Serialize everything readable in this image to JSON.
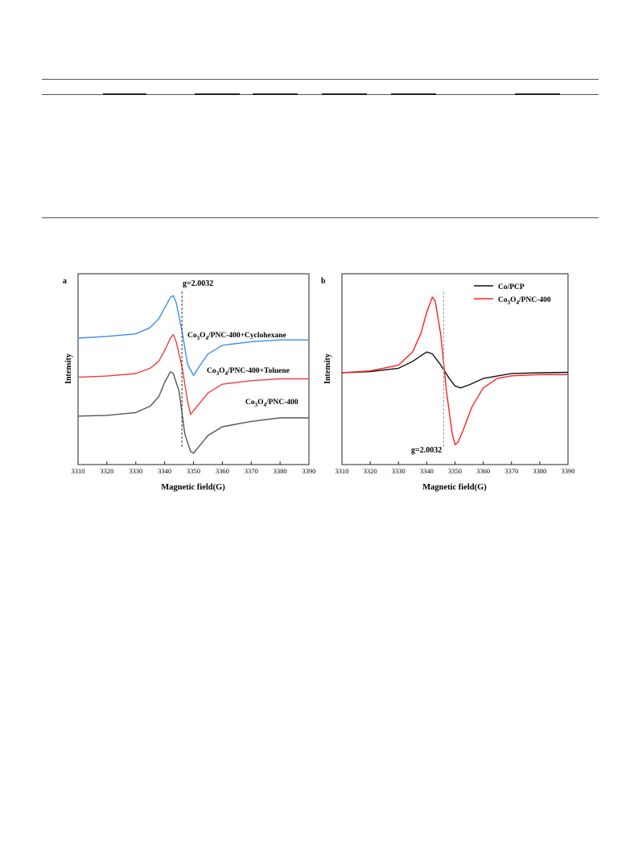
{
  "colors": {
    "blue": "#3c8ee6",
    "red": "#f03c3c",
    "gray": "#555555",
    "black": "#111111",
    "bright_red": "#ff2020"
  },
  "chart_data": [
    {
      "type": "line",
      "panel_label": "a",
      "xlabel": "Magnetic field(G)",
      "ylabel": "Intensity",
      "xlim": [
        3310,
        3390
      ],
      "xticks": [
        "3310",
        "3320",
        "3330",
        "3340",
        "3350",
        "3360",
        "3370",
        "3380",
        "3390"
      ],
      "annotation": "g=2.0032",
      "g_line_x": 3346,
      "series": [
        {
          "name": "Co3O4/PNC-400+Cyclohexane",
          "color": "#3c8ee6",
          "offset": 2.0,
          "x": [
            3310,
            3320,
            3330,
            3335,
            3338,
            3340,
            3342,
            3343,
            3344,
            3346,
            3348,
            3350,
            3352,
            3355,
            3360,
            3370,
            3380,
            3390
          ],
          "y": [
            0,
            0.05,
            0.12,
            0.3,
            0.55,
            0.85,
            1.15,
            1.2,
            1.0,
            0.2,
            -0.75,
            -1.05,
            -0.8,
            -0.45,
            -0.2,
            -0.1,
            -0.05,
            -0.05
          ]
        },
        {
          "name": "Co3O4/PNC-400+Toluene",
          "color": "#f03c3c",
          "offset": 0.9,
          "x": [
            3310,
            3320,
            3330,
            3335,
            3338,
            3340,
            3342,
            3343,
            3344,
            3346,
            3348,
            3349,
            3352,
            3355,
            3360,
            3370,
            3380,
            3390
          ],
          "y": [
            0,
            0.03,
            0.1,
            0.25,
            0.45,
            0.75,
            1.1,
            1.2,
            1.0,
            0.3,
            -0.7,
            -1.05,
            -0.75,
            -0.45,
            -0.2,
            -0.1,
            -0.05,
            -0.05
          ]
        },
        {
          "name": "Co3O4/PNC-400",
          "color": "#555555",
          "offset": -0.2,
          "x": [
            3310,
            3320,
            3330,
            3335,
            3338,
            3340,
            3342,
            3343,
            3345,
            3347,
            3349,
            3350,
            3352,
            3355,
            3360,
            3370,
            3380,
            3390
          ],
          "y": [
            0,
            0.02,
            0.1,
            0.28,
            0.55,
            0.95,
            1.25,
            1.2,
            0.7,
            -0.5,
            -1.0,
            -1.05,
            -0.85,
            -0.55,
            -0.3,
            -0.15,
            -0.05,
            -0.05
          ]
        }
      ]
    },
    {
      "type": "line",
      "panel_label": "b",
      "xlabel": "Magnetic field(G)",
      "ylabel": "Intensity",
      "xlim": [
        3310,
        3390
      ],
      "xticks": [
        "3310",
        "3320",
        "3330",
        "3340",
        "3350",
        "3360",
        "3370",
        "3380",
        "3390"
      ],
      "annotation": "g=2.0032",
      "g_line_x": 3346,
      "legend": "top-right",
      "series": [
        {
          "name": "Co/PCP",
          "color": "#111111",
          "x": [
            3310,
            3320,
            3330,
            3335,
            3338,
            3340,
            3342,
            3345,
            3348,
            3350,
            3352,
            3355,
            3360,
            3370,
            3380,
            3390
          ],
          "y": [
            0,
            0.03,
            0.12,
            0.3,
            0.45,
            0.55,
            0.5,
            0.2,
            -0.15,
            -0.35,
            -0.4,
            -0.32,
            -0.15,
            -0.02,
            0.0,
            0.01
          ]
        },
        {
          "name": "Co3O4/PNC-400",
          "color": "#ff2020",
          "x": [
            3310,
            3320,
            3330,
            3335,
            3338,
            3340,
            3342,
            3343,
            3345,
            3347,
            3349,
            3350,
            3351,
            3353,
            3356,
            3360,
            3365,
            3370,
            3380,
            3390
          ],
          "y": [
            0,
            0.05,
            0.2,
            0.55,
            1.05,
            1.6,
            2.0,
            1.9,
            1.0,
            -0.5,
            -1.6,
            -1.9,
            -1.85,
            -1.5,
            -0.9,
            -0.4,
            -0.15,
            -0.08,
            -0.05,
            -0.05
          ]
        }
      ]
    }
  ]
}
